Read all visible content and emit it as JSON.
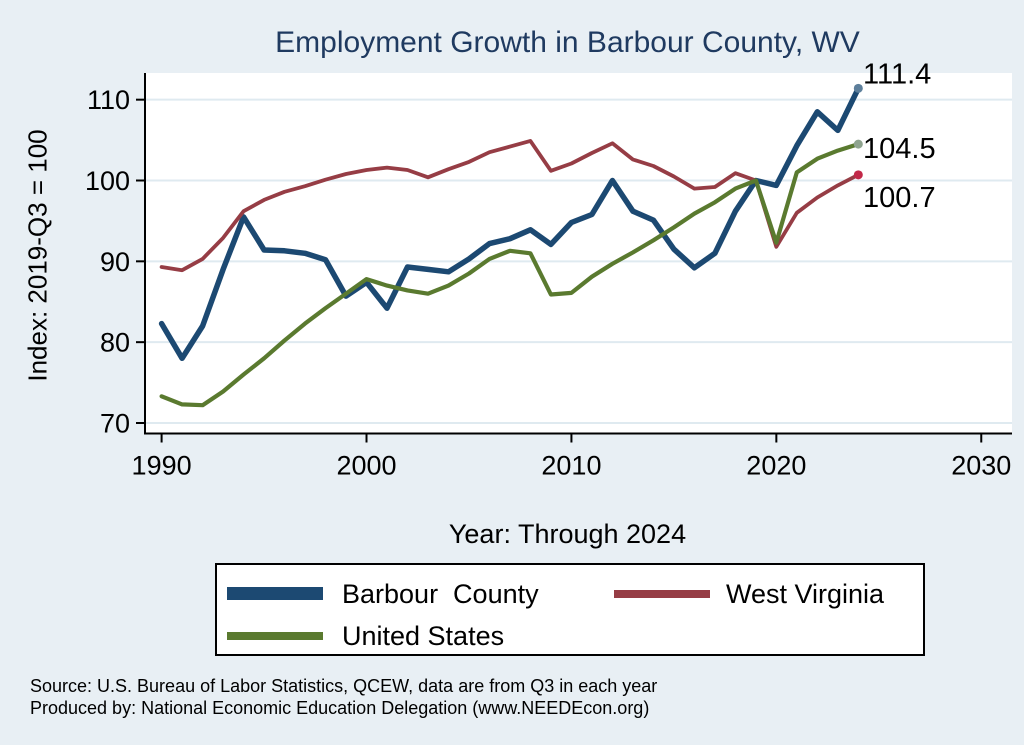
{
  "chart_data": {
    "type": "line",
    "title": "Employment Growth in Barbour County, WV",
    "xlabel": "Year: Through 2024",
    "ylabel": "Index: 2019-Q3 = 100",
    "grid": "horizontal-only",
    "legend_position": "bottom",
    "x_ticks": [
      1990,
      2000,
      2010,
      2020,
      2030
    ],
    "y_ticks": [
      70,
      80,
      90,
      100,
      110
    ],
    "xlim": [
      1989.19,
      2031.5
    ],
    "ylim": [
      68.7,
      113.3
    ],
    "x": [
      1990,
      1991,
      1992,
      1993,
      1994,
      1995,
      1996,
      1997,
      1998,
      1999,
      2000,
      2001,
      2002,
      2003,
      2004,
      2005,
      2006,
      2007,
      2008,
      2009,
      2010,
      2011,
      2012,
      2013,
      2014,
      2015,
      2016,
      2017,
      2018,
      2019,
      2020,
      2021,
      2022,
      2023,
      2024
    ],
    "series": [
      {
        "name": "Barbour  County",
        "color": "#1C4972",
        "line_width": 5.5,
        "end_value_label": "111.4",
        "end_dot_color": "#5D7F9B",
        "values": [
          82.3,
          78.0,
          82.0,
          89.0,
          95.5,
          91.4,
          91.3,
          91.0,
          90.2,
          85.7,
          87.4,
          84.2,
          89.3,
          89.0,
          88.7,
          90.3,
          92.2,
          92.8,
          93.9,
          92.1,
          94.8,
          95.8,
          100.0,
          96.2,
          95.1,
          91.5,
          89.2,
          91.0,
          96.2,
          100.0,
          99.4,
          104.3,
          108.5,
          106.2,
          111.4
        ]
      },
      {
        "name": "West Virginia",
        "color": "#963D45",
        "line_width": 3.8,
        "end_value_label": "100.7",
        "end_dot_color": "#C22848",
        "values": [
          89.3,
          88.9,
          90.3,
          92.9,
          96.2,
          97.6,
          98.6,
          99.3,
          100.1,
          100.8,
          101.3,
          101.6,
          101.3,
          100.4,
          101.4,
          102.3,
          103.5,
          104.2,
          104.9,
          101.2,
          102.1,
          103.4,
          104.6,
          102.6,
          101.8,
          100.5,
          99.0,
          99.2,
          100.9,
          100.0,
          91.8,
          96.0,
          97.9,
          99.4,
          100.7
        ]
      },
      {
        "name": "United States",
        "color": "#5A7A2F",
        "line_width": 4.2,
        "end_value_label": "104.5",
        "end_dot_color": "#8FA48F",
        "values": [
          73.3,
          72.3,
          72.2,
          73.9,
          76.0,
          78.0,
          80.2,
          82.3,
          84.2,
          86.0,
          87.8,
          87.0,
          86.4,
          86.0,
          87.0,
          88.5,
          90.3,
          91.3,
          91.0,
          85.9,
          86.1,
          88.1,
          89.7,
          91.1,
          92.6,
          94.2,
          95.9,
          97.3,
          99.0,
          100.0,
          92.3,
          101.0,
          102.7,
          103.7,
          104.5
        ]
      }
    ]
  },
  "footer": {
    "source_line": "Source: U.S. Bureau of Labor Statistics, QCEW, data are from Q3 in each year",
    "produced_by_line": "Produced by: National Economic Education Delegation (www.NEEDEcon.org)"
  },
  "colors": {
    "background": "#E8EFF4",
    "plot_background": "#FFFFFF",
    "gridline": "#DFEAF0",
    "axis": "#000000",
    "title": "#1F3A60",
    "tick_label": "#000000",
    "end_label": "#000000"
  }
}
